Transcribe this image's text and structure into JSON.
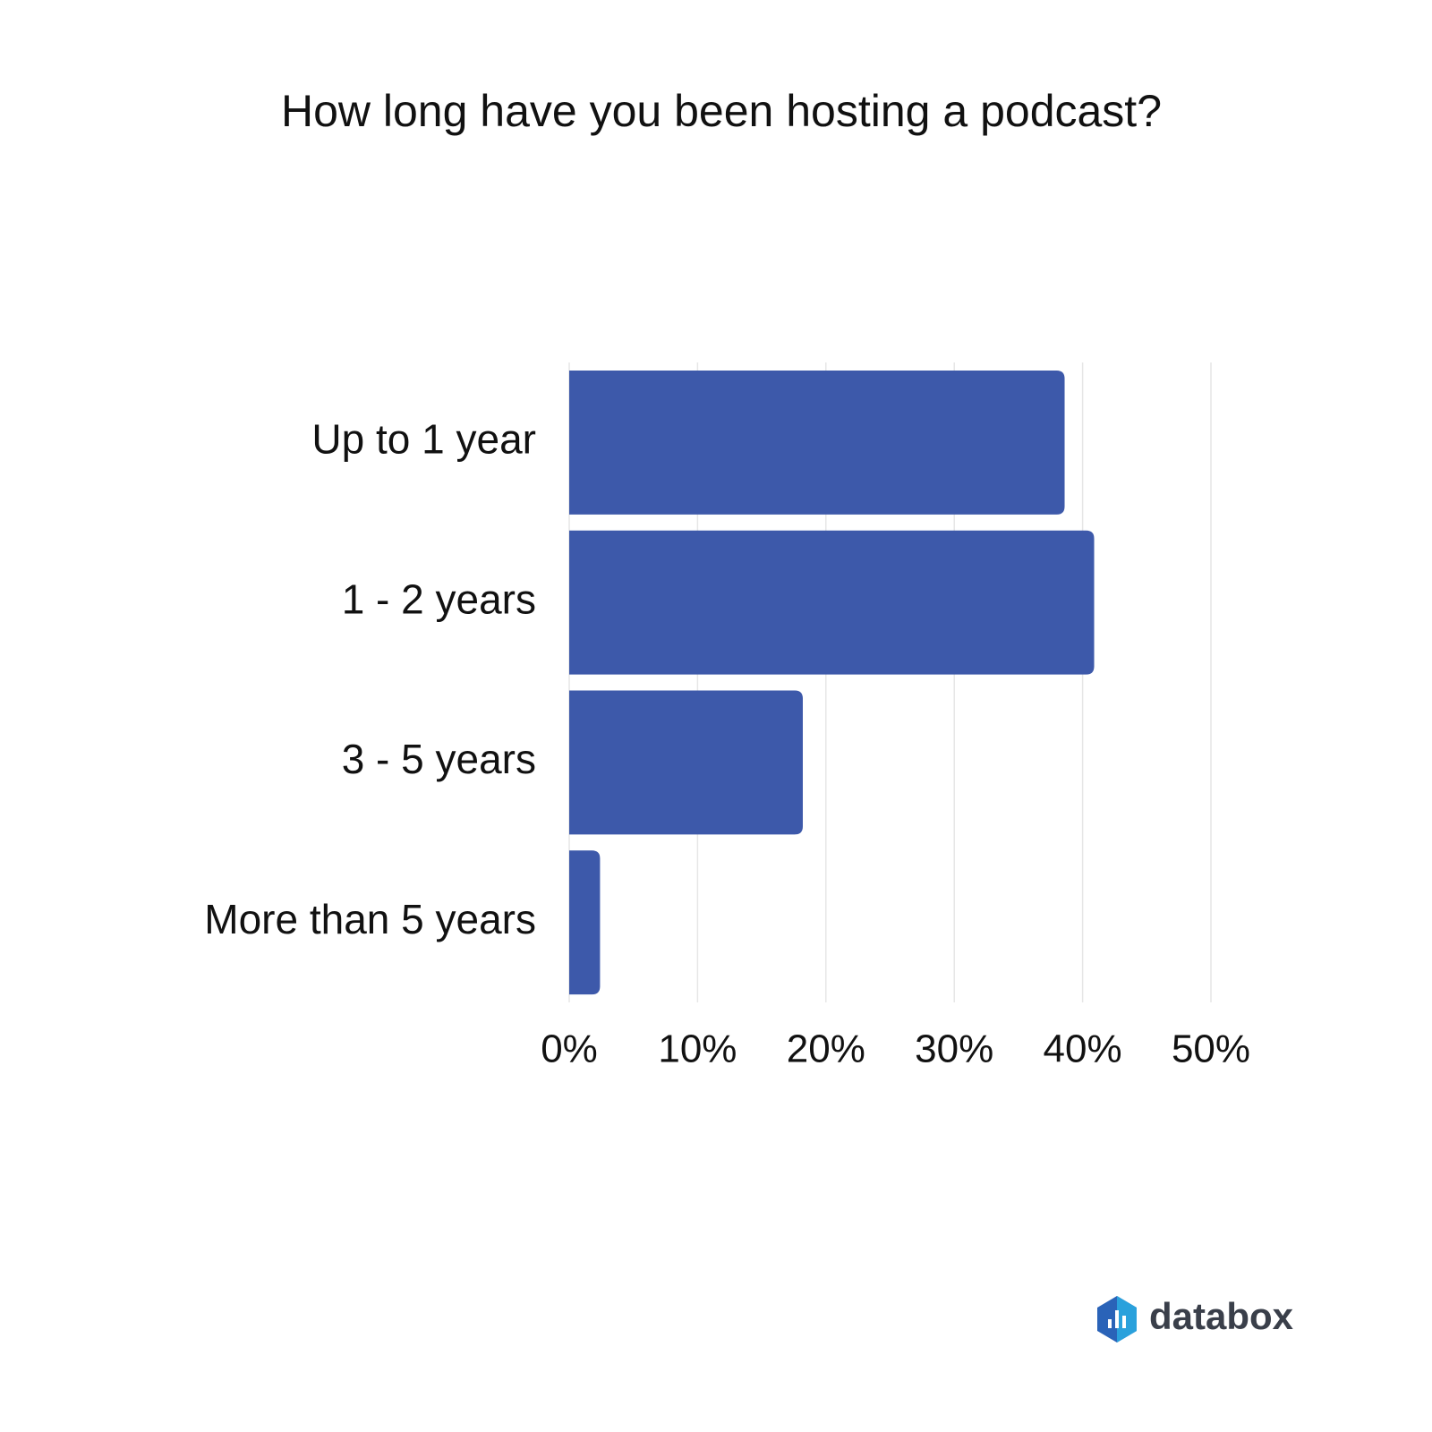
{
  "chart_data": {
    "type": "hbar",
    "title": "How long have you been hosting a podcast?",
    "categories": [
      "Up to 1 year",
      "1 - 2 years",
      "3 - 5 years",
      "More than 5 years"
    ],
    "values": [
      38.6,
      40.9,
      18.2,
      2.4
    ],
    "color": "#3d59aa",
    "xlim": [
      0,
      50
    ],
    "xticks": [
      {
        "value": 0,
        "label": "0%"
      },
      {
        "value": 10,
        "label": "10%"
      },
      {
        "value": 20,
        "label": "20%"
      },
      {
        "value": 30,
        "label": "30%"
      },
      {
        "value": 40,
        "label": "40%"
      },
      {
        "value": 50,
        "label": "50%"
      }
    ],
    "grid": true,
    "logo_text": "databox"
  }
}
